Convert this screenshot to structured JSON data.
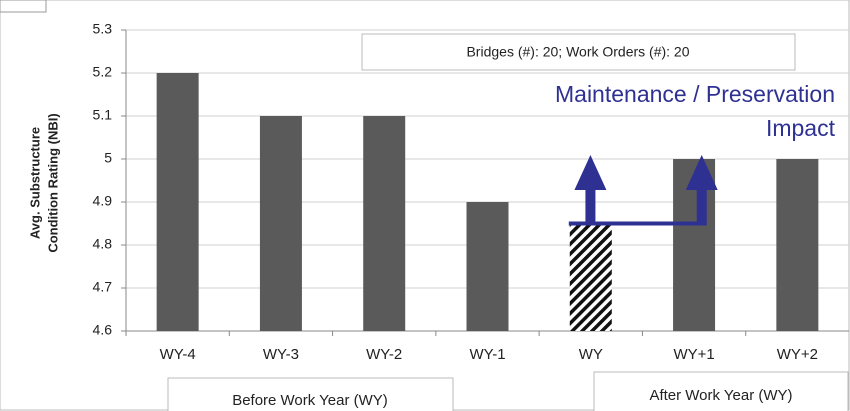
{
  "chart_data": {
    "type": "bar",
    "y_axis_label": [
      "Avg. Substructure",
      "Condition Rating (NBI)"
    ],
    "categories": [
      "WY-4",
      "WY-3",
      "WY-2",
      "WY-1",
      "WY",
      "WY+1",
      "WY+2"
    ],
    "values": [
      5.2,
      5.1,
      5.1,
      4.9,
      4.85,
      5.0,
      5.0
    ],
    "hatched": [
      false,
      false,
      false,
      false,
      true,
      false,
      false
    ],
    "color": "#5a5a5a",
    "ylim": [
      4.6,
      5.3
    ],
    "yticks": [
      4.6,
      4.7,
      4.8,
      4.9,
      5,
      5.1,
      5.2,
      5.3
    ],
    "grid": true,
    "annotations": {
      "counts": "Bridges (#): 20;    Work Orders (#): 20",
      "impact_line1": "Maintenance  /  Preservation",
      "impact_line2": "Impact",
      "color": "#2e3192"
    },
    "groups": [
      {
        "label": "Before Work Year (WY)"
      },
      {
        "label": "After Work Year (WY)"
      }
    ]
  }
}
